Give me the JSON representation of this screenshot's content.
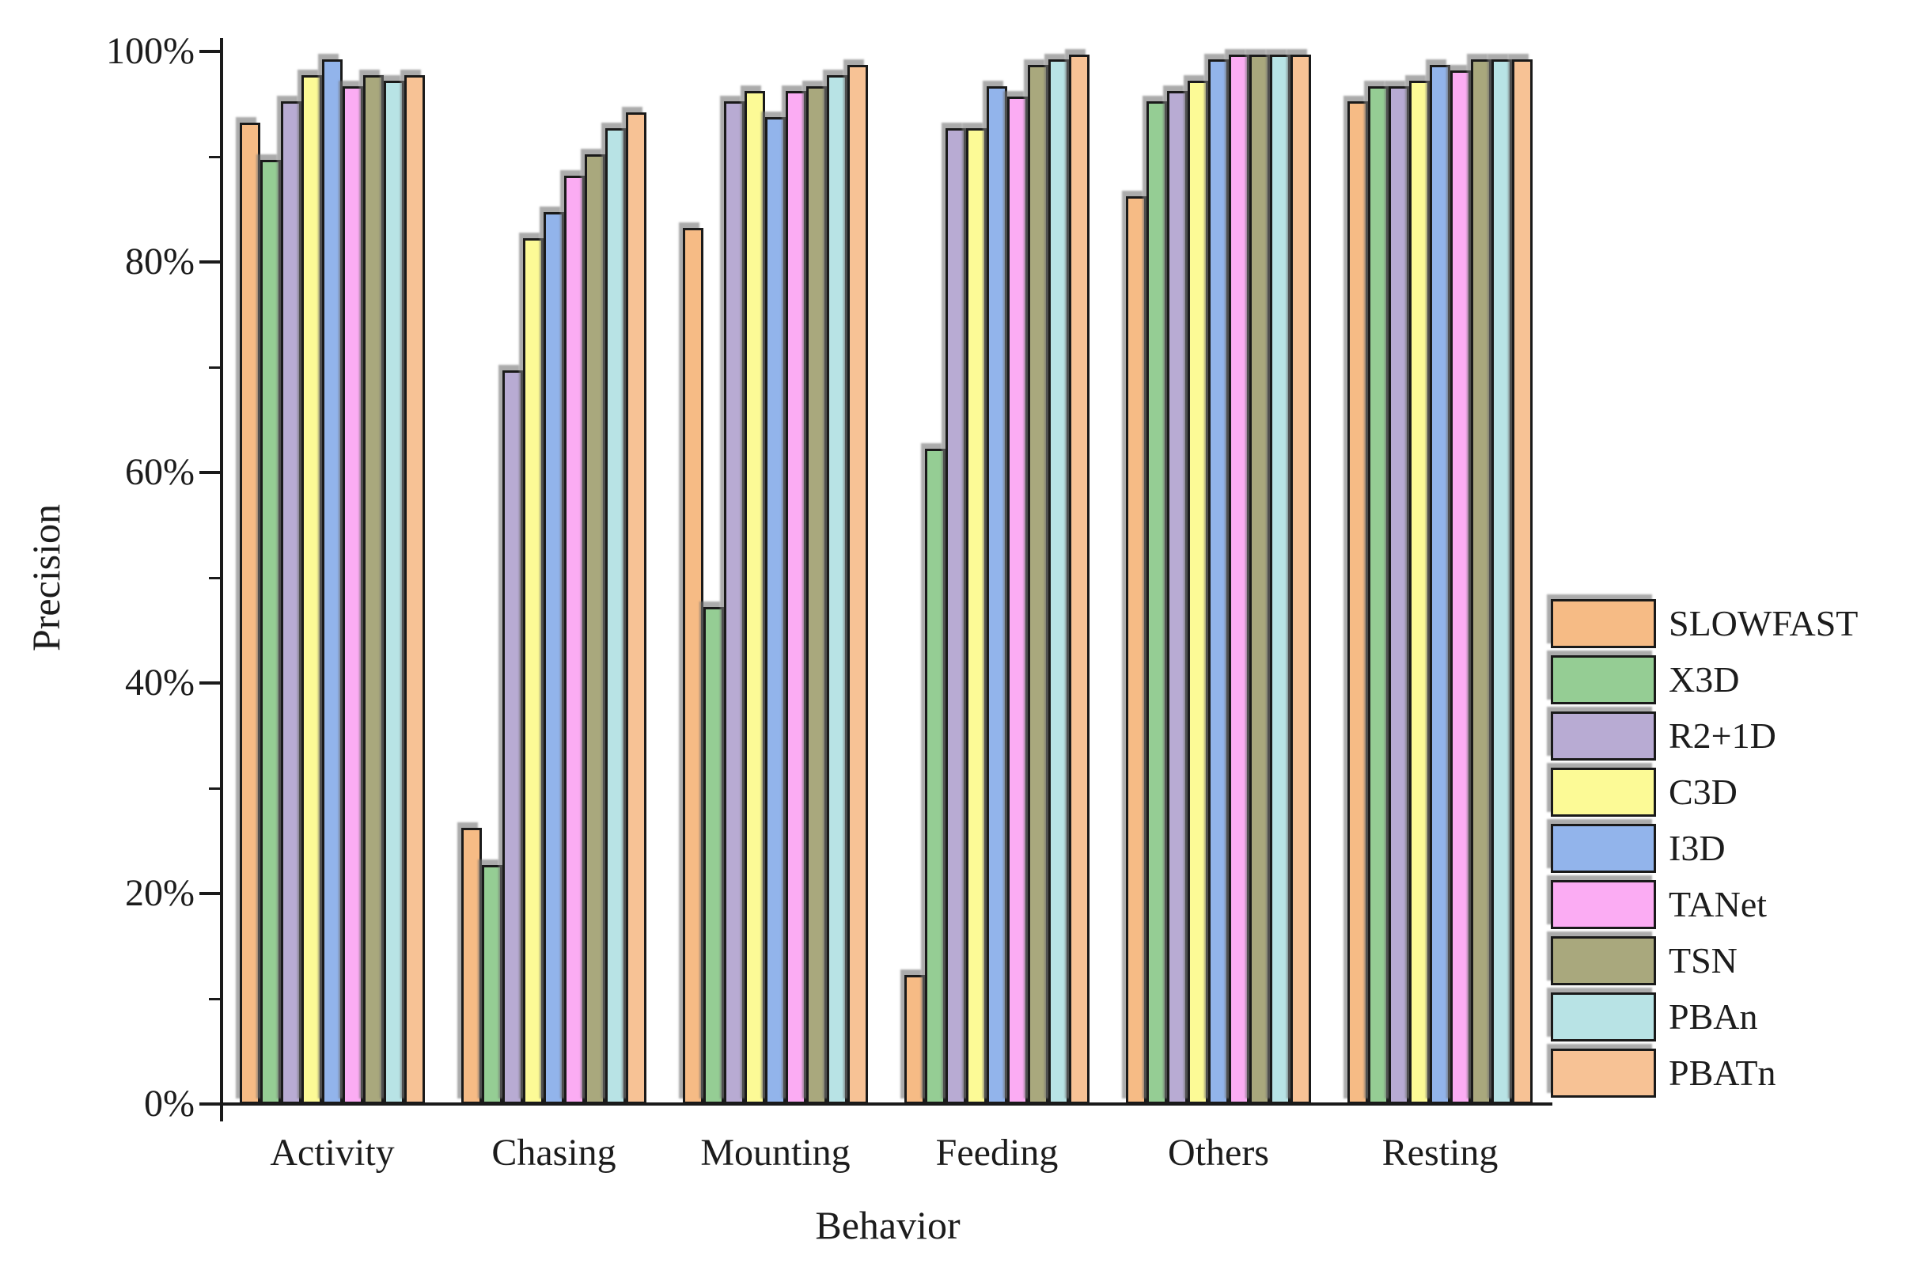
{
  "chart_data": {
    "type": "bar",
    "title": "",
    "xlabel": "Behavior",
    "ylabel": "Precision",
    "categories": [
      "Activity",
      "Chasing",
      "Mounting",
      "Feeding",
      "Others",
      "Resting"
    ],
    "series": [
      {
        "name": "SLOWFAST",
        "color": "#F6BB85",
        "values": [
          93,
          26,
          83,
          12,
          86,
          95
        ]
      },
      {
        "name": "X3D",
        "color": "#95CD94",
        "values": [
          89.5,
          22.5,
          47,
          62,
          95,
          96.5
        ]
      },
      {
        "name": "R2+1D",
        "color": "#B8ABD3",
        "values": [
          95,
          69.5,
          95,
          92.5,
          96,
          96.5
        ]
      },
      {
        "name": "C3D",
        "color": "#FCFA96",
        "values": [
          97.5,
          82,
          96,
          92.5,
          97,
          97
        ]
      },
      {
        "name": "I3D",
        "color": "#92B4EB",
        "values": [
          99,
          84.5,
          93.5,
          96.5,
          99,
          98.5
        ]
      },
      {
        "name": "TANet",
        "color": "#FBACF3",
        "values": [
          96.5,
          88,
          96,
          95.5,
          99.5,
          98
        ]
      },
      {
        "name": "TSN",
        "color": "#A9A87D",
        "values": [
          97.5,
          90,
          96.5,
          98.5,
          99.5,
          99
        ]
      },
      {
        "name": "PBAn",
        "color": "#B8E3E5",
        "values": [
          97,
          92.5,
          97.5,
          99,
          99.5,
          99
        ]
      },
      {
        "name": "PBATn",
        "color": "#F7C295",
        "values": [
          97.5,
          94,
          98.5,
          99.5,
          99.5,
          99
        ]
      }
    ],
    "y_axis": {
      "min": 0,
      "max": 100,
      "major_ticks": [
        0,
        20,
        40,
        60,
        80,
        100
      ],
      "major_tick_labels": [
        "0%",
        "20%",
        "40%",
        "60%",
        "80%",
        "100%"
      ],
      "minor_ticks": [
        10,
        30,
        50,
        70,
        90
      ],
      "unit": "%"
    },
    "legend_position": "right",
    "grid": false,
    "colors": {
      "bar_border": "#1A1A1A",
      "axis": "#1A1A1A",
      "text": "#1C1C1C",
      "shadow": "rgba(115,115,115,0.6)"
    }
  }
}
